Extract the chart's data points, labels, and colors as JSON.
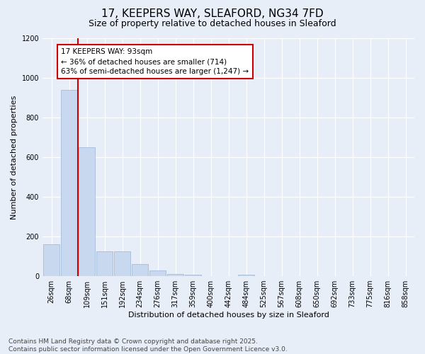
{
  "title": "17, KEEPERS WAY, SLEAFORD, NG34 7FD",
  "subtitle": "Size of property relative to detached houses in Sleaford",
  "xlabel": "Distribution of detached houses by size in Sleaford",
  "ylabel": "Number of detached properties",
  "bar_labels": [
    "26sqm",
    "68sqm",
    "109sqm",
    "151sqm",
    "192sqm",
    "234sqm",
    "276sqm",
    "317sqm",
    "359sqm",
    "400sqm",
    "442sqm",
    "484sqm",
    "525sqm",
    "567sqm",
    "608sqm",
    "650sqm",
    "692sqm",
    "733sqm",
    "775sqm",
    "816sqm",
    "858sqm"
  ],
  "bar_values": [
    160,
    940,
    650,
    125,
    125,
    60,
    30,
    12,
    8,
    0,
    0,
    8,
    0,
    0,
    0,
    0,
    0,
    0,
    0,
    0,
    0
  ],
  "bar_color": "#c8d8ee",
  "bar_edge_color": "#9ab4d4",
  "vline_x_pos": 1.5,
  "vline_color": "#cc0000",
  "annotation_text": "17 KEEPERS WAY: 93sqm\n← 36% of detached houses are smaller (714)\n63% of semi-detached houses are larger (1,247) →",
  "annotation_box_facecolor": "#ffffff",
  "annotation_box_edgecolor": "#cc0000",
  "ylim": [
    0,
    1200
  ],
  "yticks": [
    0,
    200,
    400,
    600,
    800,
    1000,
    1200
  ],
  "bg_color": "#e8eef8",
  "grid_color": "#ffffff",
  "footer": "Contains HM Land Registry data © Crown copyright and database right 2025.\nContains public sector information licensed under the Open Government Licence v3.0.",
  "title_fontsize": 11,
  "subtitle_fontsize": 9,
  "axis_label_fontsize": 8,
  "tick_fontsize": 7,
  "annotation_fontsize": 7.5,
  "footer_fontsize": 6.5
}
